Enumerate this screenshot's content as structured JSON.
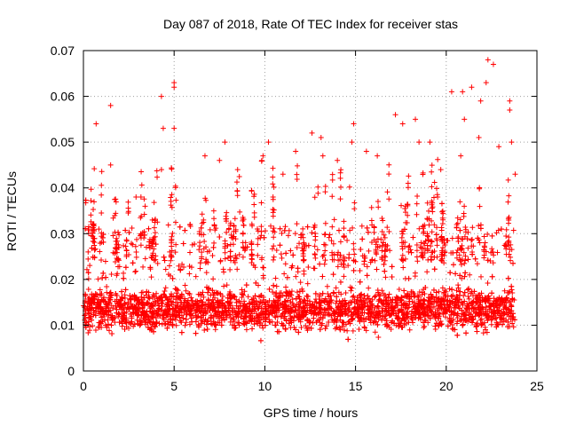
{
  "chart_data": {
    "type": "scatter",
    "title": "Day 087 of 2018, Rate Of TEC Index for receiver stas",
    "xlabel": "GPS time / hours",
    "ylabel": "ROTI / TECUs",
    "xlim": [
      0,
      25
    ],
    "ylim": [
      0,
      0.07
    ],
    "xticks": [
      0,
      5,
      10,
      15,
      20,
      25
    ],
    "xtick_labels": [
      "0",
      "5",
      "10",
      "15",
      "20",
      "25"
    ],
    "yticks": [
      0,
      0.01,
      0.02,
      0.03,
      0.04,
      0.05,
      0.06,
      0.07
    ],
    "ytick_labels": [
      "0",
      "0.01",
      "0.02",
      "0.03",
      "0.04",
      "0.05",
      "0.06",
      "0.07"
    ],
    "grid": true,
    "marker": "+",
    "color": "#ff0000",
    "series": [
      {
        "name": "ROTI",
        "note": "dense band ~0.005-0.025 TECU from 0 to ~23.8 h; representative outliers listed",
        "band": {
          "x_start": 0.0,
          "x_end": 23.8,
          "y_low": 0.005,
          "y_high": 0.025
        },
        "points": [
          [
            0.7,
            0.054
          ],
          [
            1.5,
            0.058
          ],
          [
            1.5,
            0.045
          ],
          [
            4.3,
            0.06
          ],
          [
            5.0,
            0.063
          ],
          [
            5.0,
            0.062
          ],
          [
            5.0,
            0.053
          ],
          [
            4.4,
            0.053
          ],
          [
            4.3,
            0.044
          ],
          [
            2.9,
            0.038
          ],
          [
            3.4,
            0.036
          ],
          [
            3.8,
            0.033
          ],
          [
            6.7,
            0.047
          ],
          [
            7.5,
            0.046
          ],
          [
            7.8,
            0.05
          ],
          [
            8.5,
            0.044
          ],
          [
            9.9,
            0.047
          ],
          [
            10.2,
            0.05
          ],
          [
            11.0,
            0.043
          ],
          [
            11.7,
            0.048
          ],
          [
            12.6,
            0.052
          ],
          [
            13.1,
            0.051
          ],
          [
            13.2,
            0.047
          ],
          [
            14.0,
            0.046
          ],
          [
            14.9,
            0.054
          ],
          [
            14.8,
            0.05
          ],
          [
            15.6,
            0.048
          ],
          [
            16.2,
            0.047
          ],
          [
            17.2,
            0.056
          ],
          [
            17.6,
            0.054
          ],
          [
            18.3,
            0.055
          ],
          [
            18.5,
            0.05
          ],
          [
            19.1,
            0.05
          ],
          [
            20.3,
            0.061
          ],
          [
            20.9,
            0.061
          ],
          [
            21.4,
            0.062
          ],
          [
            21.9,
            0.059
          ],
          [
            22.2,
            0.063
          ],
          [
            22.3,
            0.068
          ],
          [
            22.6,
            0.067
          ],
          [
            23.5,
            0.059
          ],
          [
            23.5,
            0.057
          ],
          [
            23.6,
            0.05
          ],
          [
            21.0,
            0.055
          ],
          [
            21.8,
            0.051
          ],
          [
            22.9,
            0.049
          ],
          [
            23.8,
            0.043
          ],
          [
            20.8,
            0.047
          ],
          [
            19.7,
            0.044
          ],
          [
            17.9,
            0.041
          ]
        ]
      }
    ]
  }
}
